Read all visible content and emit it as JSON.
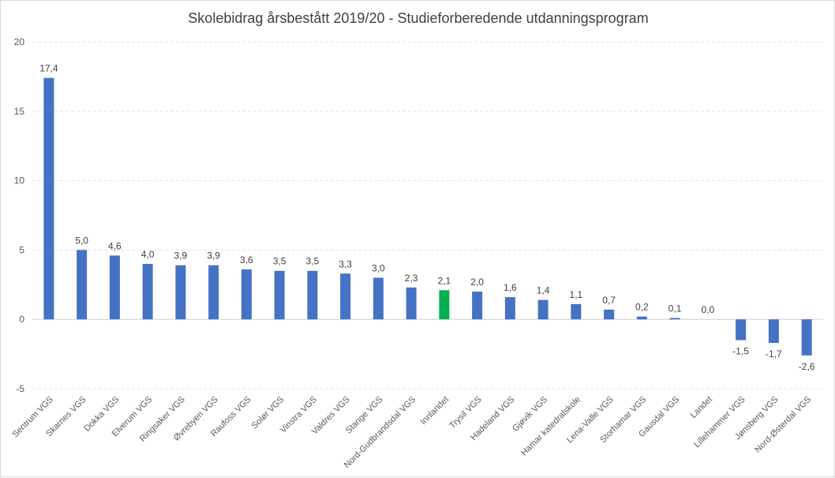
{
  "chart_data": {
    "type": "bar",
    "title": "Skolebidrag årsbestått 2019/20 - Studieforberedende  utdanningsprogram",
    "xlabel": "",
    "ylabel": "",
    "ylim": [
      -5,
      20
    ],
    "yticks": [
      "-5",
      "0",
      "5",
      "10",
      "15",
      "20"
    ],
    "grid": true,
    "legend": "none",
    "categories": [
      "Sentrum VGS",
      "Skarnes VGS",
      "Dokka VGS",
      "Elverum VGS",
      "Ringsaker VGS",
      "Øvrebyen VGS",
      "Raufoss VGS",
      "Solør VGS",
      "Vinstra VGS",
      "Valdres VGS",
      "Stange VGS",
      "Nord-Gudbrandsdal VGS",
      "Innlandet",
      "Trysil VGS",
      "Hadeland VGS",
      "Gjøvik VGS",
      "Hamar katedralskole",
      "Lena-Valle VGS",
      "Storhamar VGS",
      "Gausdal VGS",
      "Landet",
      "Lillehammer VGS",
      "Jønsberg VGS",
      "Nord-Østerdal VGS"
    ],
    "values": [
      17.4,
      5.0,
      4.6,
      4.0,
      3.9,
      3.9,
      3.6,
      3.5,
      3.5,
      3.3,
      3.0,
      2.3,
      2.1,
      2.0,
      1.6,
      1.4,
      1.1,
      0.7,
      0.2,
      0.1,
      0.0,
      -1.5,
      -1.7,
      -2.6
    ],
    "value_labels": [
      "17,4",
      "5,0",
      "4,6",
      "4,0",
      "3,9",
      "3,9",
      "3,6",
      "3,5",
      "3,5",
      "3,3",
      "3,0",
      "2,3",
      "2,1",
      "2,0",
      "1,6",
      "1,4",
      "1,1",
      "0,7",
      "0,2",
      "0,1",
      "0,0",
      "-1,5",
      "-1,7",
      "-2,6"
    ],
    "colors": {
      "default": "#4472c4",
      "highlight": "#00b050",
      "highlight_category": "Innlandet"
    }
  }
}
